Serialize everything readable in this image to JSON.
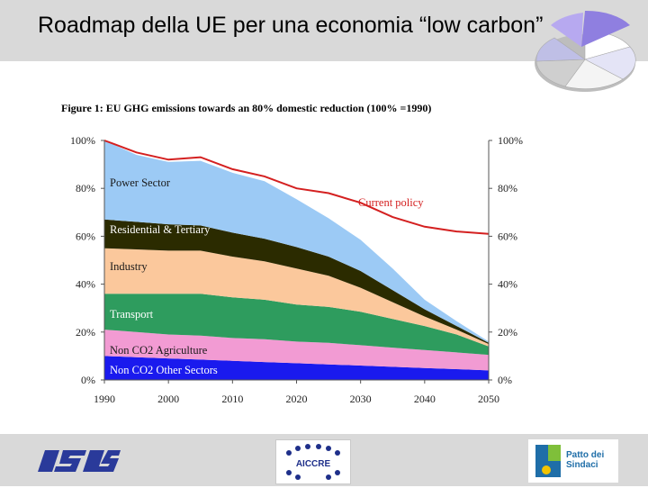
{
  "header": {
    "title": "Roadmap della UE per una economia “low carbon”",
    "background": "#d9d9d9"
  },
  "figure": {
    "title": "Figure 1: EU GHG emissions towards an 80% domestic reduction (100% =1990)"
  },
  "chart_data": {
    "type": "area",
    "title": "Figure 1: EU GHG emissions towards an 80% domestic reduction (100% =1990)",
    "x": [
      1990,
      1995,
      2000,
      2005,
      2010,
      2015,
      2020,
      2025,
      2030,
      2035,
      2040,
      2045,
      2050
    ],
    "xticks": [
      "1990",
      "2000",
      "2010",
      "2020",
      "2030",
      "2040",
      "2050"
    ],
    "yticks_left": [
      "100%",
      "80%",
      "60%",
      "40%",
      "20%",
      "0%"
    ],
    "yticks_right": [
      "100%",
      "80%",
      "60%",
      "40%",
      "20%",
      "0%"
    ],
    "ylim": [
      0,
      100
    ],
    "xlim": [
      1990,
      2050
    ],
    "series": [
      {
        "name": "Non CO2 Other Sectors",
        "color": "#1a1aee",
        "values": [
          10,
          9.5,
          9,
          8.5,
          8,
          7.5,
          7,
          6.5,
          6,
          5.5,
          5,
          4.5,
          4
        ]
      },
      {
        "name": "Non CO2 Agriculture",
        "color": "#f29bd3",
        "values": [
          11,
          10.5,
          10,
          10,
          9.5,
          9.5,
          9,
          9,
          8.5,
          8,
          7.5,
          7,
          6.5
        ]
      },
      {
        "name": "Transport",
        "color": "#2e9c5e",
        "values": [
          15,
          16,
          17,
          17.5,
          17,
          16.5,
          15.5,
          15,
          14,
          12,
          10,
          7.5,
          3.5
        ]
      },
      {
        "name": "Industry",
        "color": "#fbc89c",
        "values": [
          19,
          18.5,
          18,
          18,
          17,
          16,
          15,
          13,
          10,
          7,
          4,
          2,
          1
        ]
      },
      {
        "name": "Residential & Tertiary",
        "color": "#2b2b00",
        "values": [
          12,
          11.5,
          11,
          10.5,
          10,
          9.5,
          9,
          8,
          7,
          5,
          3,
          1.5,
          0.5
        ]
      },
      {
        "name": "Power Sector",
        "color": "#9ccaf5",
        "values": [
          33,
          28,
          26,
          27,
          25,
          24,
          20,
          16,
          13,
          9,
          4,
          2,
          0.5
        ]
      }
    ],
    "lines": [
      {
        "name": "Current policy",
        "color": "#d42020",
        "values": [
          100,
          95,
          92,
          93,
          88,
          85,
          80,
          78,
          74,
          68,
          64,
          62,
          61
        ]
      }
    ]
  },
  "footer": {
    "background": "#d9d9d9",
    "logos": {
      "aiccre_text": "AICCRE",
      "patto_line1": "Patto dei",
      "patto_line2": "Sindaci"
    }
  }
}
